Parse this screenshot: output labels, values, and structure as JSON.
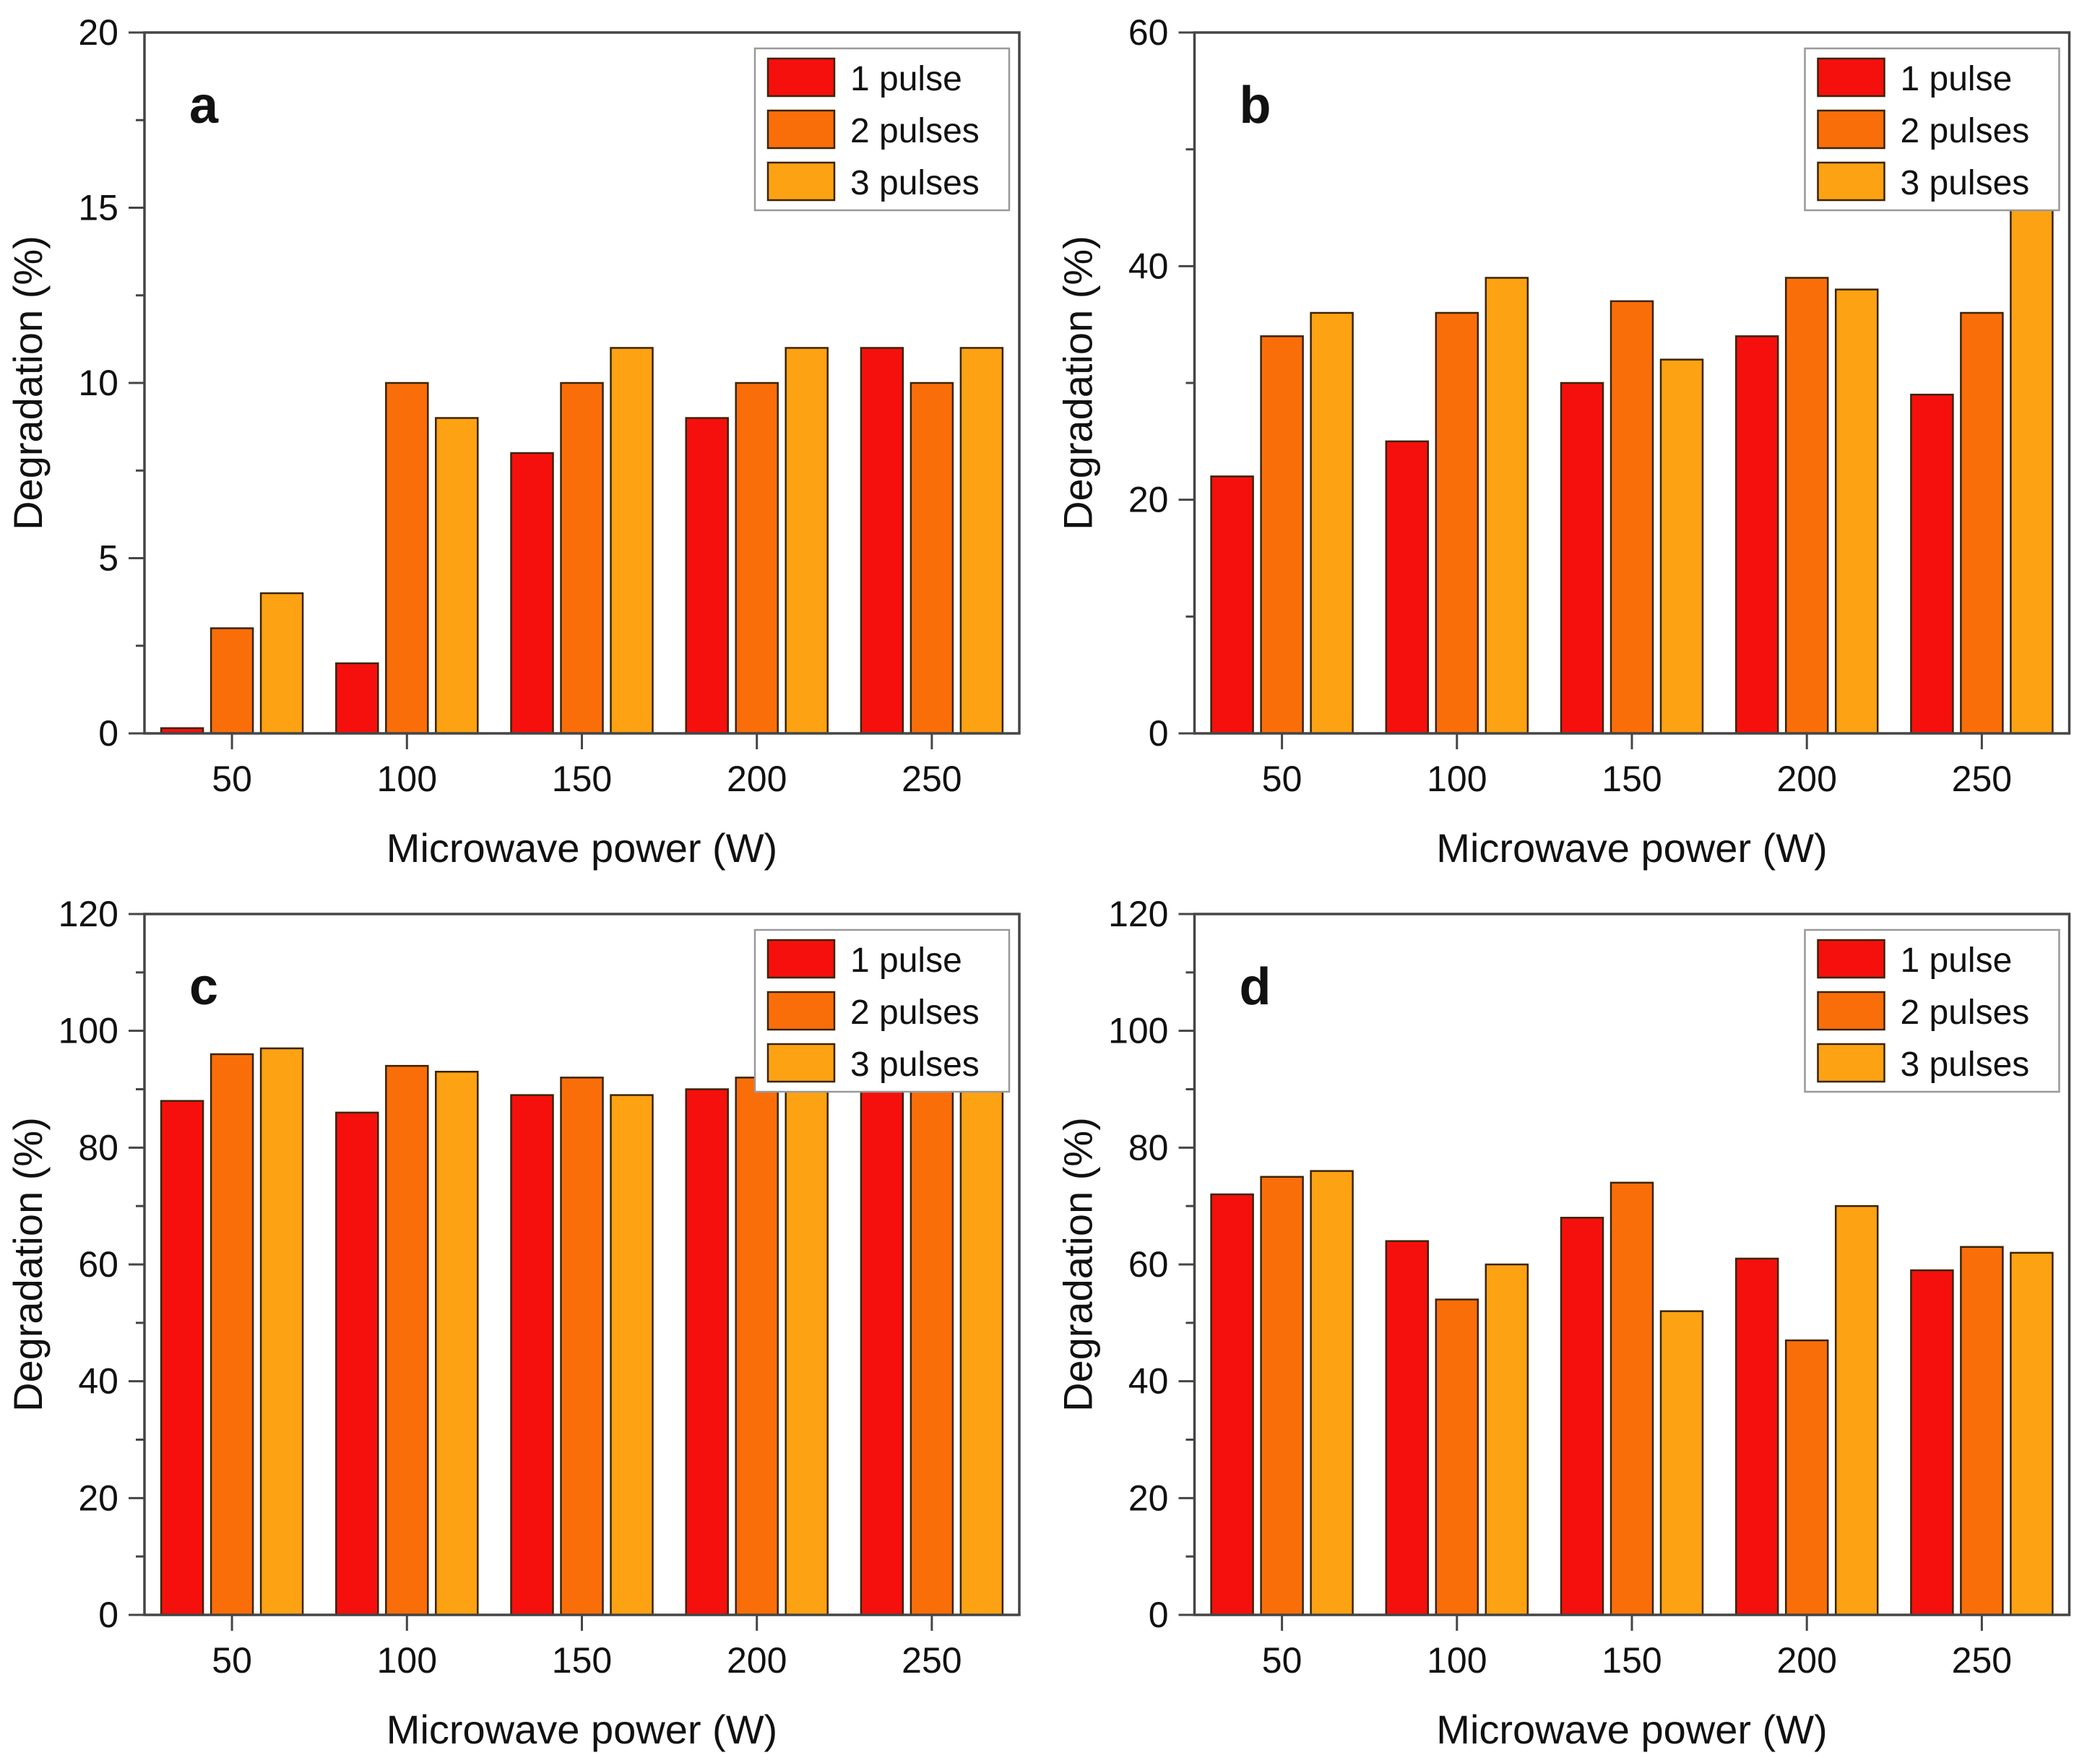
{
  "figure": {
    "background": "#ffffff",
    "panel_letters": [
      "a",
      "b",
      "c",
      "d"
    ]
  },
  "styles": {
    "series_colors": [
      "#f5100d",
      "#fa6e0a",
      "#fca213"
    ],
    "bar_border_color": "#3a2408",
    "axis_color": "#454545",
    "text_color": "#111111",
    "legend_border_color": "#999999",
    "legend_background": "#ffffff"
  },
  "legend": {
    "position": "top-right",
    "labels": [
      "1 pulse",
      "2 pulses",
      "3 pulses"
    ]
  },
  "chart_data": [
    {
      "type": "bar",
      "panel": "a",
      "title": "",
      "xlabel": "Microwave power (W)",
      "ylabel": "Degradation (%)",
      "categories": [
        "50",
        "100",
        "150",
        "200",
        "250"
      ],
      "series": [
        {
          "name": "1 pulse",
          "color": "#f5100d",
          "values": [
            0.15,
            2,
            8,
            9,
            11
          ]
        },
        {
          "name": "2 pulses",
          "color": "#fa6e0a",
          "values": [
            3,
            10,
            10,
            10,
            10
          ]
        },
        {
          "name": "3 pulses",
          "color": "#fca213",
          "values": [
            4,
            9,
            11,
            11,
            11
          ]
        }
      ],
      "ylim": [
        0,
        20
      ],
      "ytick_major": 5,
      "ytick_minor": 2.5,
      "grid": false,
      "legend_position": "top-right"
    },
    {
      "type": "bar",
      "panel": "b",
      "title": "",
      "xlabel": "Microwave power (W)",
      "ylabel": "Degradation (%)",
      "categories": [
        "50",
        "100",
        "150",
        "200",
        "250"
      ],
      "series": [
        {
          "name": "1 pulse",
          "color": "#f5100d",
          "values": [
            22,
            25,
            30,
            34,
            29
          ]
        },
        {
          "name": "2 pulses",
          "color": "#fa6e0a",
          "values": [
            34,
            36,
            37,
            39,
            36
          ]
        },
        {
          "name": "3 pulses",
          "color": "#fca213",
          "values": [
            36,
            39,
            32,
            38,
            46
          ]
        }
      ],
      "ylim": [
        0,
        60
      ],
      "ytick_major": 20,
      "ytick_minor": 10,
      "grid": false,
      "legend_position": "top-right"
    },
    {
      "type": "bar",
      "panel": "c",
      "title": "",
      "xlabel": "Microwave power (W)",
      "ylabel": "Degradation (%)",
      "categories": [
        "50",
        "100",
        "150",
        "200",
        "250"
      ],
      "series": [
        {
          "name": "1 pulse",
          "color": "#f5100d",
          "values": [
            88,
            86,
            89,
            90,
            91
          ]
        },
        {
          "name": "2 pulses",
          "color": "#fa6e0a",
          "values": [
            96,
            94,
            92,
            92,
            91
          ]
        },
        {
          "name": "3 pulses",
          "color": "#fca213",
          "values": [
            97,
            93,
            89,
            91,
            90
          ]
        }
      ],
      "ylim": [
        0,
        120
      ],
      "ytick_major": 20,
      "ytick_minor": 10,
      "grid": false,
      "legend_position": "top-right"
    },
    {
      "type": "bar",
      "panel": "d",
      "title": "",
      "xlabel": "Microwave power (W)",
      "ylabel": "Degradation (%)",
      "categories": [
        "50",
        "100",
        "150",
        "200",
        "250"
      ],
      "series": [
        {
          "name": "1 pulse",
          "color": "#f5100d",
          "values": [
            72,
            64,
            68,
            61,
            59
          ]
        },
        {
          "name": "2 pulses",
          "color": "#fa6e0a",
          "values": [
            75,
            54,
            74,
            47,
            63
          ]
        },
        {
          "name": "3 pulses",
          "color": "#fca213",
          "values": [
            76,
            60,
            52,
            70,
            62
          ]
        }
      ],
      "ylim": [
        0,
        120
      ],
      "ytick_major": 20,
      "ytick_minor": 10,
      "grid": false,
      "legend_position": "top-right"
    }
  ]
}
